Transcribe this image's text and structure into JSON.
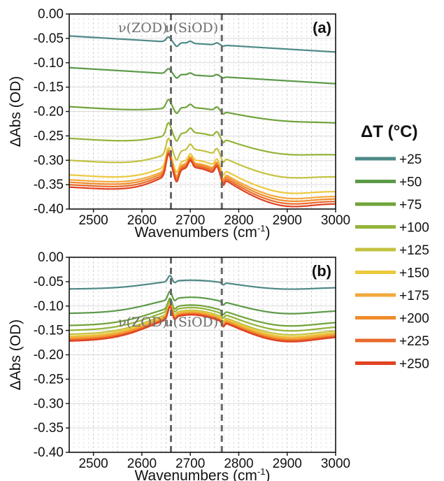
{
  "chart_data": [
    {
      "type": "line",
      "panel_label": "(a)",
      "xlabel": "Wavenumbers (cm",
      "xlabel_sup": "-1",
      "xlabel_close": ")",
      "ylabel": "ΔAbs (OD)",
      "xlim": [
        2450,
        3000
      ],
      "ylim": [
        -0.4,
        0.0
      ],
      "xticks": [
        "2500",
        "2600",
        "2700",
        "2800",
        "2900",
        "3000"
      ],
      "yticks": [
        "0.00",
        "-0.05",
        "-0.10",
        "-0.15",
        "-0.20",
        "-0.25",
        "-0.30",
        "-0.35",
        "-0.40"
      ],
      "grid": true,
      "annotations": [
        {
          "text": "ν(ZOD)",
          "x": 2660
        },
        {
          "text": "ν(SiOD)",
          "x": 2765
        }
      ],
      "series": [
        {
          "name": "+25",
          "color": "#4e8a87",
          "offset": -0.045,
          "scale": 0.0
        },
        {
          "name": "+50",
          "color": "#5c9a48",
          "offset": -0.11,
          "scale": 0.0
        },
        {
          "name": "+75",
          "color": "#6fa33a",
          "offset": -0.19,
          "scale": 0.22
        },
        {
          "name": "+100",
          "color": "#93b43a",
          "offset": -0.255,
          "scale": 0.45
        },
        {
          "name": "+125",
          "color": "#c4c240",
          "offset": -0.3,
          "scale": 0.62
        },
        {
          "name": "+150",
          "color": "#ecc93c",
          "offset": -0.33,
          "scale": 0.76
        },
        {
          "name": "+175",
          "color": "#f2a83b",
          "offset": -0.34,
          "scale": 0.82
        },
        {
          "name": "+200",
          "color": "#ef8c2c",
          "offset": -0.345,
          "scale": 0.86
        },
        {
          "name": "+225",
          "color": "#e8692a",
          "offset": -0.35,
          "scale": 0.89
        },
        {
          "name": "+250",
          "color": "#e04221",
          "offset": -0.355,
          "scale": 0.92
        }
      ]
    },
    {
      "type": "line",
      "panel_label": "(b)",
      "xlabel": "Wavenumbers (cm",
      "xlabel_sup": "-1",
      "xlabel_close": ")",
      "ylabel": "ΔAbs (OD)",
      "xlim": [
        2450,
        3000
      ],
      "ylim": [
        -0.4,
        0.0
      ],
      "xticks": [
        "2500",
        "2600",
        "2700",
        "2800",
        "2900",
        "3000"
      ],
      "yticks": [
        "0.00",
        "-0.05",
        "-0.10",
        "-0.15",
        "-0.20",
        "-0.25",
        "-0.30",
        "-0.35",
        "-0.40"
      ],
      "grid": true,
      "annotations": [
        {
          "text": "ν(ZOD)",
          "x": 2660
        },
        {
          "text": "ν(SiOD)",
          "x": 2765
        }
      ],
      "series": [
        {
          "name": "+25",
          "color": "#4e8a87",
          "offset": -0.065,
          "scale": 0.3
        },
        {
          "name": "+50",
          "color": "#5c9a48",
          "offset": -0.115,
          "scale": 0.55
        },
        {
          "name": "+75",
          "color": "#6fa33a",
          "offset": -0.14,
          "scale": 0.7
        },
        {
          "name": "+100",
          "color": "#93b43a",
          "offset": -0.15,
          "scale": 0.78
        },
        {
          "name": "+125",
          "color": "#c4c240",
          "offset": -0.158,
          "scale": 0.82
        },
        {
          "name": "+150",
          "color": "#ecc93c",
          "offset": -0.162,
          "scale": 0.85
        },
        {
          "name": "+175",
          "color": "#f2a83b",
          "offset": -0.165,
          "scale": 0.87
        },
        {
          "name": "+200",
          "color": "#ef8c2c",
          "offset": -0.168,
          "scale": 0.88
        },
        {
          "name": "+225",
          "color": "#e8692a",
          "offset": -0.17,
          "scale": 0.89
        },
        {
          "name": "+250",
          "color": "#e04221",
          "offset": -0.172,
          "scale": 0.9
        }
      ]
    }
  ],
  "legend": {
    "title": "ΔT (°C)",
    "entries": [
      {
        "label": "+25",
        "color": "#4e8a87"
      },
      {
        "label": "+50",
        "color": "#5c9a48"
      },
      {
        "label": "+75",
        "color": "#6fa33a"
      },
      {
        "label": "+100",
        "color": "#93b43a"
      },
      {
        "label": "+125",
        "color": "#c4c240"
      },
      {
        "label": "+150",
        "color": "#ecc93c"
      },
      {
        "label": "+175",
        "color": "#f2a83b"
      },
      {
        "label": "+200",
        "color": "#ef8c2c"
      },
      {
        "label": "+225",
        "color": "#e8692a"
      },
      {
        "label": "+250",
        "color": "#e04221"
      }
    ]
  }
}
